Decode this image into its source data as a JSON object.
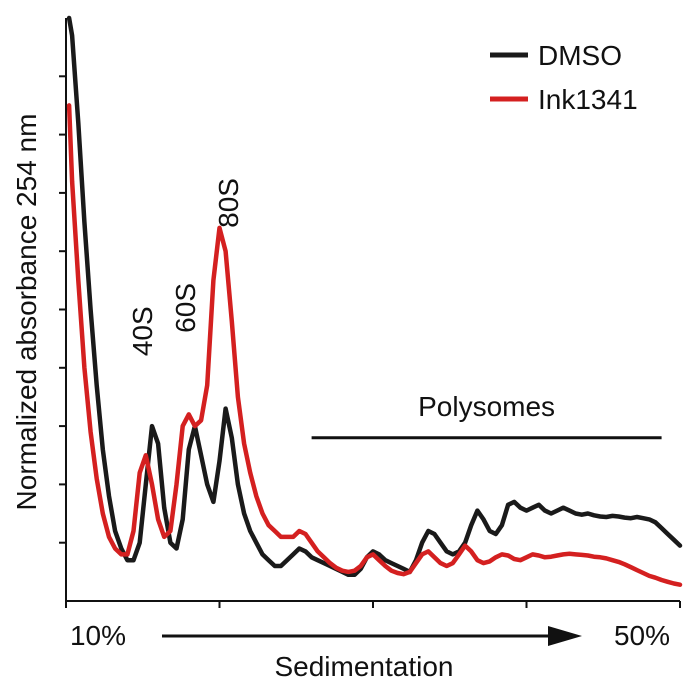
{
  "chart_data": {
    "type": "line",
    "title": "",
    "xlabel": "Sedimentation",
    "ylabel": "Normalized absorbance 254 nm",
    "xlim": [
      0,
      100
    ],
    "ylim": [
      0,
      1.0
    ],
    "x_tick_values": [
      0,
      25,
      50,
      75,
      100
    ],
    "y_tick_values": [
      0.1,
      0.2,
      0.3,
      0.4,
      0.5,
      0.6,
      0.7,
      0.8,
      0.9
    ],
    "x_range_labels": {
      "start": "10%",
      "end": "50%"
    },
    "grid": false,
    "legend": {
      "position": "top-right"
    },
    "colors": {
      "DMSO": "#1a1a1a",
      "Ink1341": "#d42020"
    },
    "peak_labels": [
      {
        "text": "40S",
        "x": 14,
        "y": 0.42
      },
      {
        "text": "60S",
        "x": 21,
        "y": 0.46
      },
      {
        "text": "80S",
        "x": 28,
        "y": 0.64
      }
    ],
    "annotation": {
      "text": "Polysomes",
      "x_start": 40,
      "x_end": 97,
      "y": 0.28
    },
    "series": [
      {
        "name": "DMSO",
        "color": "#1a1a1a",
        "x": [
          0.5,
          1,
          2,
          3,
          4,
          5,
          6,
          7,
          8,
          9,
          10,
          11,
          12,
          13,
          14,
          15,
          16,
          17,
          18,
          19,
          20,
          21,
          22,
          23,
          24,
          25,
          26,
          27,
          28,
          29,
          30,
          31,
          32,
          33,
          34,
          35,
          36,
          37,
          38,
          39,
          40,
          41,
          42,
          43,
          44,
          45,
          46,
          47,
          48,
          49,
          50,
          51,
          52,
          53,
          54,
          55,
          56,
          57,
          58,
          59,
          60,
          61,
          62,
          63,
          64,
          65,
          66,
          67,
          68,
          69,
          70,
          71,
          72,
          73,
          74,
          75,
          76,
          77,
          78,
          79,
          80,
          81,
          82,
          83,
          84,
          85,
          86,
          87,
          88,
          89,
          90,
          91,
          92,
          93,
          94,
          95,
          96,
          97,
          98,
          99,
          100
        ],
        "y": [
          1.0,
          0.97,
          0.82,
          0.65,
          0.5,
          0.37,
          0.26,
          0.18,
          0.12,
          0.09,
          0.07,
          0.07,
          0.1,
          0.2,
          0.3,
          0.27,
          0.16,
          0.1,
          0.09,
          0.14,
          0.26,
          0.3,
          0.25,
          0.2,
          0.17,
          0.24,
          0.33,
          0.28,
          0.2,
          0.15,
          0.12,
          0.1,
          0.08,
          0.07,
          0.06,
          0.06,
          0.07,
          0.08,
          0.09,
          0.085,
          0.075,
          0.07,
          0.065,
          0.06,
          0.055,
          0.05,
          0.045,
          0.045,
          0.055,
          0.075,
          0.085,
          0.08,
          0.07,
          0.065,
          0.06,
          0.055,
          0.05,
          0.07,
          0.1,
          0.12,
          0.115,
          0.1,
          0.085,
          0.08,
          0.085,
          0.1,
          0.13,
          0.155,
          0.14,
          0.12,
          0.115,
          0.13,
          0.165,
          0.17,
          0.16,
          0.155,
          0.16,
          0.165,
          0.155,
          0.15,
          0.155,
          0.16,
          0.155,
          0.15,
          0.148,
          0.15,
          0.147,
          0.145,
          0.144,
          0.146,
          0.145,
          0.143,
          0.142,
          0.144,
          0.142,
          0.14,
          0.135,
          0.125,
          0.115,
          0.105,
          0.095
        ]
      },
      {
        "name": "Ink1341",
        "color": "#d42020",
        "x": [
          0.5,
          1,
          2,
          3,
          4,
          5,
          6,
          7,
          8,
          9,
          10,
          11,
          12,
          13,
          14,
          15,
          16,
          17,
          18,
          19,
          20,
          21,
          22,
          23,
          24,
          25,
          26,
          27,
          28,
          29,
          30,
          31,
          32,
          33,
          34,
          35,
          36,
          37,
          38,
          39,
          40,
          41,
          42,
          43,
          44,
          45,
          46,
          47,
          48,
          49,
          50,
          51,
          52,
          53,
          54,
          55,
          56,
          57,
          58,
          59,
          60,
          61,
          62,
          63,
          64,
          65,
          66,
          67,
          68,
          69,
          70,
          71,
          72,
          73,
          74,
          75,
          76,
          77,
          78,
          79,
          80,
          81,
          82,
          83,
          84,
          85,
          86,
          87,
          88,
          89,
          90,
          91,
          92,
          93,
          94,
          95,
          96,
          97,
          98,
          99,
          100
        ],
        "y": [
          0.85,
          0.72,
          0.55,
          0.4,
          0.29,
          0.21,
          0.15,
          0.11,
          0.09,
          0.08,
          0.08,
          0.12,
          0.22,
          0.25,
          0.2,
          0.14,
          0.11,
          0.12,
          0.2,
          0.3,
          0.32,
          0.3,
          0.31,
          0.37,
          0.55,
          0.64,
          0.6,
          0.48,
          0.35,
          0.27,
          0.22,
          0.18,
          0.15,
          0.13,
          0.12,
          0.11,
          0.11,
          0.11,
          0.12,
          0.115,
          0.1,
          0.085,
          0.075,
          0.065,
          0.057,
          0.052,
          0.05,
          0.052,
          0.06,
          0.075,
          0.08,
          0.07,
          0.06,
          0.052,
          0.048,
          0.046,
          0.05,
          0.065,
          0.08,
          0.085,
          0.075,
          0.065,
          0.06,
          0.065,
          0.08,
          0.095,
          0.085,
          0.07,
          0.065,
          0.068,
          0.075,
          0.08,
          0.078,
          0.072,
          0.07,
          0.075,
          0.08,
          0.078,
          0.075,
          0.076,
          0.078,
          0.08,
          0.081,
          0.08,
          0.079,
          0.078,
          0.076,
          0.075,
          0.073,
          0.07,
          0.067,
          0.063,
          0.058,
          0.053,
          0.048,
          0.043,
          0.04,
          0.036,
          0.033,
          0.03,
          0.028
        ]
      }
    ]
  }
}
